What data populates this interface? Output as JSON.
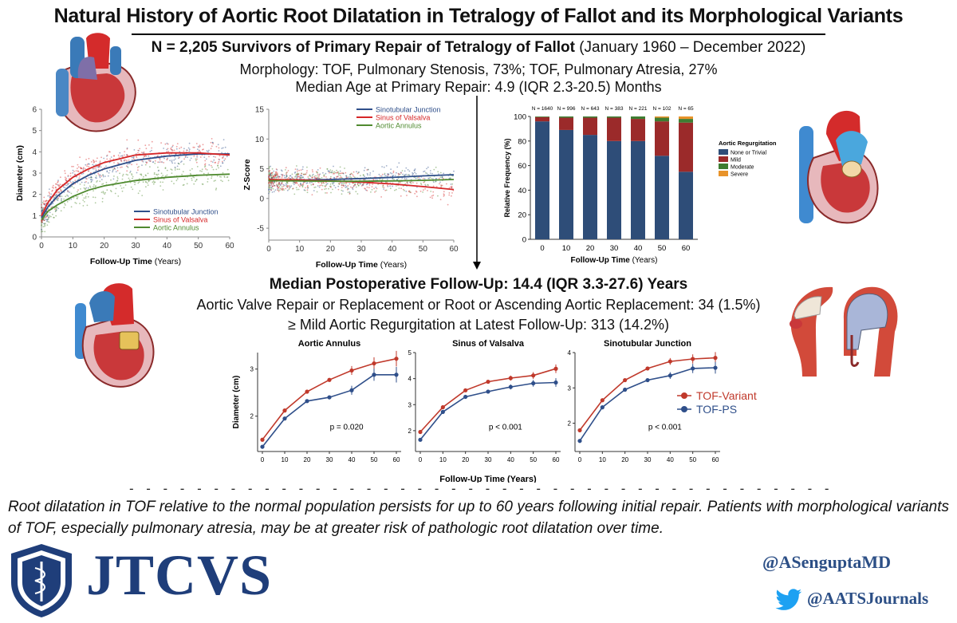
{
  "header": {
    "title": "Natural History of Aortic Root Dilatation in Tetralogy of Fallot and its Morphological Variants",
    "cohort_bold": "N = 2,205 Survivors of Primary Repair of Tetralogy of Fallot",
    "cohort_rest": " (January 1960 – December 2022)",
    "morphology": "Morphology: TOF, Pulmonary Stenosis, 73%; TOF, Pulmonary Atresia, 27%",
    "median_age": "Median Age at Primary Repair: 4.9 (IQR 2.3-20.5) Months"
  },
  "middle": {
    "followup_bold": "Median Postoperative Follow-Up",
    "followup_rest": ": 14.4 (IQR 3.3-27.6) Years",
    "reop": "Aortic Valve Repair or Replacement or Root or Ascending Aortic Replacement: 34 (1.5%)",
    "ar": "≥ Mild Aortic Regurgitation at Latest Follow-Up: 313 (14.2%)"
  },
  "footer": {
    "dashes": "- - - - - - - - - - - - - - - - - - - - - - - - - - - - - - - - - - - - - - - - - - - - - - - - - - - - - - -",
    "conclusion": "Root dilatation in TOF relative to the normal population persists for up to 60 years following initial repair. Patients with morphological variants of TOF, especially pulmonary atresia, may be at greater risk of pathologic root dilatation over time.",
    "journal": "JTCVS",
    "handle1": "@ASenguptaMD",
    "handle2": "@AATSJournals"
  },
  "colors": {
    "stj": "#2f4f8a",
    "sov": "#d62728",
    "annulus": "#4f8a2f",
    "none_trivial": "#2e4d78",
    "mild": "#9b2a2a",
    "moderate": "#3e7d32",
    "severe": "#e8932a",
    "tof_variant": "#c0392b",
    "tof_ps": "#2f4f8a",
    "brand": "#1f3e7a"
  },
  "chart_data": [
    {
      "type": "scatter",
      "xlabel": "Follow-Up Time",
      "xunit": "(Years)",
      "ylabel": "Diameter (cm)",
      "xlim": [
        0,
        60
      ],
      "ylim": [
        0,
        6
      ],
      "xticks": [
        0,
        10,
        20,
        30,
        40,
        50,
        60
      ],
      "yticks": [
        0,
        1,
        2,
        3,
        4,
        5,
        6
      ],
      "legend_placement": "lower-right",
      "series": [
        {
          "name": "Sinotubular Junction",
          "x": [
            0,
            2,
            5,
            10,
            15,
            20,
            30,
            40,
            50,
            60
          ],
          "values": [
            0.9,
            1.4,
            1.9,
            2.5,
            2.9,
            3.2,
            3.6,
            3.8,
            3.9,
            3.9
          ]
        },
        {
          "name": "Sinus of Valsalva",
          "x": [
            0,
            2,
            5,
            10,
            15,
            20,
            30,
            40,
            50,
            60
          ],
          "values": [
            1.0,
            1.6,
            2.2,
            2.8,
            3.2,
            3.5,
            3.85,
            3.95,
            3.95,
            3.85
          ]
        },
        {
          "name": "Aortic Annulus",
          "x": [
            0,
            2,
            5,
            10,
            15,
            20,
            30,
            40,
            50,
            60
          ],
          "values": [
            0.8,
            1.2,
            1.5,
            1.9,
            2.2,
            2.4,
            2.65,
            2.8,
            2.9,
            2.95
          ]
        }
      ]
    },
    {
      "type": "scatter",
      "xlabel": "Follow-Up Time",
      "xunit": "(Years)",
      "ylabel": "Z-Score",
      "xlim": [
        0,
        60
      ],
      "ylim": [
        -7,
        15
      ],
      "xticks": [
        0,
        10,
        20,
        30,
        40,
        50,
        60
      ],
      "yticks": [
        -5,
        0,
        5,
        10,
        15
      ],
      "legend_placement": "top-right",
      "series": [
        {
          "name": "Sinotubular Junction",
          "x": [
            0,
            10,
            20,
            30,
            40,
            50,
            60
          ],
          "values": [
            3.0,
            3.1,
            3.2,
            3.35,
            3.55,
            3.8,
            4.0
          ]
        },
        {
          "name": "Sinus of Valsalva",
          "x": [
            0,
            10,
            20,
            30,
            40,
            50,
            60
          ],
          "values": [
            3.2,
            3.1,
            2.95,
            2.75,
            2.45,
            2.0,
            1.5
          ]
        },
        {
          "name": "Aortic Annulus",
          "x": [
            0,
            10,
            20,
            30,
            40,
            50,
            60
          ],
          "values": [
            3.0,
            2.95,
            2.9,
            2.9,
            2.95,
            3.05,
            3.2
          ]
        }
      ]
    },
    {
      "type": "bar",
      "ylabel": "Relative Frequency (%)",
      "xlabel": "Follow-Up Time",
      "xunit": "(Years)",
      "ylim": [
        0,
        100
      ],
      "yticks": [
        0,
        20,
        40,
        60,
        80,
        100
      ],
      "categories": [
        "0",
        "10",
        "20",
        "30",
        "40",
        "50",
        "60"
      ],
      "n_labels": [
        "N = 1640",
        "N = 996",
        "N = 643",
        "N = 383",
        "N = 221",
        "N = 102",
        "N = 65"
      ],
      "legend_title": "Aortic Regurgitation",
      "legend_placement": "right",
      "stacked": true,
      "series": [
        {
          "name": "None or Trivial",
          "values": [
            96,
            89,
            85,
            80,
            80,
            68,
            55
          ]
        },
        {
          "name": "Mild",
          "values": [
            3.5,
            10,
            14,
            19,
            18,
            28,
            40
          ]
        },
        {
          "name": "Moderate",
          "values": [
            0.5,
            1,
            1,
            1,
            2,
            3,
            3
          ]
        },
        {
          "name": "Severe",
          "values": [
            0,
            0,
            0,
            0,
            0,
            1,
            2
          ]
        }
      ]
    },
    {
      "type": "line",
      "title": "Aortic Annulus",
      "ylabel": "Diameter (cm)",
      "xlabel": "",
      "x": [
        0,
        10,
        20,
        30,
        40,
        50,
        60
      ],
      "xticks": [
        0,
        10,
        20,
        30,
        40,
        50,
        60
      ],
      "ylim": [
        1.25,
        3.35
      ],
      "yticks": [
        2,
        3
      ],
      "annotation": "p = 0.020",
      "series": [
        {
          "name": "TOF-Variant",
          "values": [
            1.5,
            2.12,
            2.52,
            2.77,
            2.97,
            3.12,
            3.22
          ]
        },
        {
          "name": "TOF-PS",
          "values": [
            1.35,
            1.95,
            2.32,
            2.4,
            2.55,
            2.88,
            2.88
          ]
        }
      ]
    },
    {
      "type": "line",
      "title": "Sinus of Valsalva",
      "ylabel": "",
      "xlabel": "Follow-Up Time (Years)",
      "x": [
        0,
        10,
        20,
        30,
        40,
        50,
        60
      ],
      "xticks": [
        0,
        10,
        20,
        30,
        40,
        50,
        60
      ],
      "ylim": [
        1.2,
        5.0
      ],
      "yticks": [
        2,
        3,
        4,
        5
      ],
      "annotation": "p < 0.001",
      "series": [
        {
          "name": "TOF-Variant",
          "values": [
            1.95,
            2.9,
            3.55,
            3.88,
            4.02,
            4.12,
            4.38
          ]
        },
        {
          "name": "TOF-PS",
          "values": [
            1.65,
            2.72,
            3.3,
            3.5,
            3.68,
            3.82,
            3.85
          ]
        }
      ]
    },
    {
      "type": "line",
      "title": "Sinotubular Junction",
      "ylabel": "",
      "xlabel": "",
      "x": [
        0,
        10,
        20,
        30,
        40,
        50,
        60
      ],
      "xticks": [
        0,
        10,
        20,
        30,
        40,
        50,
        60
      ],
      "ylim": [
        1.2,
        4.0
      ],
      "yticks": [
        2,
        3,
        4
      ],
      "annotation": "p < 0.001",
      "legend": [
        "TOF-Variant",
        "TOF-PS"
      ],
      "legend_placement": "right",
      "series": [
        {
          "name": "TOF-Variant",
          "values": [
            1.8,
            2.65,
            3.22,
            3.55,
            3.75,
            3.82,
            3.85
          ]
        },
        {
          "name": "TOF-PS",
          "values": [
            1.5,
            2.45,
            2.95,
            3.22,
            3.35,
            3.55,
            3.57
          ]
        }
      ]
    }
  ]
}
